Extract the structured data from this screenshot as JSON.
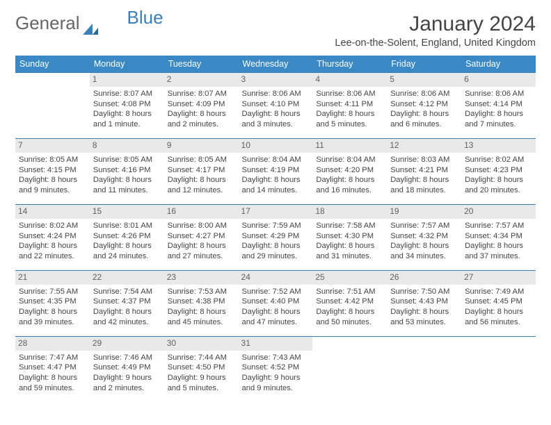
{
  "logo": {
    "part1": "General",
    "part2": "Blue"
  },
  "header": {
    "title": "January 2024",
    "location": "Lee-on-the-Solent, England, United Kingdom"
  },
  "colors": {
    "header_bg": "#3b89c4",
    "header_text": "#ffffff",
    "cell_border": "#3b7fb8",
    "daynum_bg": "#e9e9e9",
    "daynum_text": "#616161",
    "body_text": "#444444",
    "logo_blue": "#3b7fb8",
    "logo_gray": "#666666"
  },
  "weekdays": [
    "Sunday",
    "Monday",
    "Tuesday",
    "Wednesday",
    "Thursday",
    "Friday",
    "Saturday"
  ],
  "grid": [
    [
      null,
      {
        "n": "1",
        "sr": "8:07 AM",
        "ss": "4:08 PM",
        "dl": "8 hours and 1 minute."
      },
      {
        "n": "2",
        "sr": "8:07 AM",
        "ss": "4:09 PM",
        "dl": "8 hours and 2 minutes."
      },
      {
        "n": "3",
        "sr": "8:06 AM",
        "ss": "4:10 PM",
        "dl": "8 hours and 3 minutes."
      },
      {
        "n": "4",
        "sr": "8:06 AM",
        "ss": "4:11 PM",
        "dl": "8 hours and 5 minutes."
      },
      {
        "n": "5",
        "sr": "8:06 AM",
        "ss": "4:12 PM",
        "dl": "8 hours and 6 minutes."
      },
      {
        "n": "6",
        "sr": "8:06 AM",
        "ss": "4:14 PM",
        "dl": "8 hours and 7 minutes."
      }
    ],
    [
      {
        "n": "7",
        "sr": "8:05 AM",
        "ss": "4:15 PM",
        "dl": "8 hours and 9 minutes."
      },
      {
        "n": "8",
        "sr": "8:05 AM",
        "ss": "4:16 PM",
        "dl": "8 hours and 11 minutes."
      },
      {
        "n": "9",
        "sr": "8:05 AM",
        "ss": "4:17 PM",
        "dl": "8 hours and 12 minutes."
      },
      {
        "n": "10",
        "sr": "8:04 AM",
        "ss": "4:19 PM",
        "dl": "8 hours and 14 minutes."
      },
      {
        "n": "11",
        "sr": "8:04 AM",
        "ss": "4:20 PM",
        "dl": "8 hours and 16 minutes."
      },
      {
        "n": "12",
        "sr": "8:03 AM",
        "ss": "4:21 PM",
        "dl": "8 hours and 18 minutes."
      },
      {
        "n": "13",
        "sr": "8:02 AM",
        "ss": "4:23 PM",
        "dl": "8 hours and 20 minutes."
      }
    ],
    [
      {
        "n": "14",
        "sr": "8:02 AM",
        "ss": "4:24 PM",
        "dl": "8 hours and 22 minutes."
      },
      {
        "n": "15",
        "sr": "8:01 AM",
        "ss": "4:26 PM",
        "dl": "8 hours and 24 minutes."
      },
      {
        "n": "16",
        "sr": "8:00 AM",
        "ss": "4:27 PM",
        "dl": "8 hours and 27 minutes."
      },
      {
        "n": "17",
        "sr": "7:59 AM",
        "ss": "4:29 PM",
        "dl": "8 hours and 29 minutes."
      },
      {
        "n": "18",
        "sr": "7:58 AM",
        "ss": "4:30 PM",
        "dl": "8 hours and 31 minutes."
      },
      {
        "n": "19",
        "sr": "7:57 AM",
        "ss": "4:32 PM",
        "dl": "8 hours and 34 minutes."
      },
      {
        "n": "20",
        "sr": "7:57 AM",
        "ss": "4:34 PM",
        "dl": "8 hours and 37 minutes."
      }
    ],
    [
      {
        "n": "21",
        "sr": "7:55 AM",
        "ss": "4:35 PM",
        "dl": "8 hours and 39 minutes."
      },
      {
        "n": "22",
        "sr": "7:54 AM",
        "ss": "4:37 PM",
        "dl": "8 hours and 42 minutes."
      },
      {
        "n": "23",
        "sr": "7:53 AM",
        "ss": "4:38 PM",
        "dl": "8 hours and 45 minutes."
      },
      {
        "n": "24",
        "sr": "7:52 AM",
        "ss": "4:40 PM",
        "dl": "8 hours and 47 minutes."
      },
      {
        "n": "25",
        "sr": "7:51 AM",
        "ss": "4:42 PM",
        "dl": "8 hours and 50 minutes."
      },
      {
        "n": "26",
        "sr": "7:50 AM",
        "ss": "4:43 PM",
        "dl": "8 hours and 53 minutes."
      },
      {
        "n": "27",
        "sr": "7:49 AM",
        "ss": "4:45 PM",
        "dl": "8 hours and 56 minutes."
      }
    ],
    [
      {
        "n": "28",
        "sr": "7:47 AM",
        "ss": "4:47 PM",
        "dl": "8 hours and 59 minutes."
      },
      {
        "n": "29",
        "sr": "7:46 AM",
        "ss": "4:49 PM",
        "dl": "9 hours and 2 minutes."
      },
      {
        "n": "30",
        "sr": "7:44 AM",
        "ss": "4:50 PM",
        "dl": "9 hours and 5 minutes."
      },
      {
        "n": "31",
        "sr": "7:43 AM",
        "ss": "4:52 PM",
        "dl": "9 hours and 9 minutes."
      },
      null,
      null,
      null
    ]
  ],
  "labels": {
    "sunrise": "Sunrise: ",
    "sunset": "Sunset: ",
    "daylight": "Daylight: "
  }
}
